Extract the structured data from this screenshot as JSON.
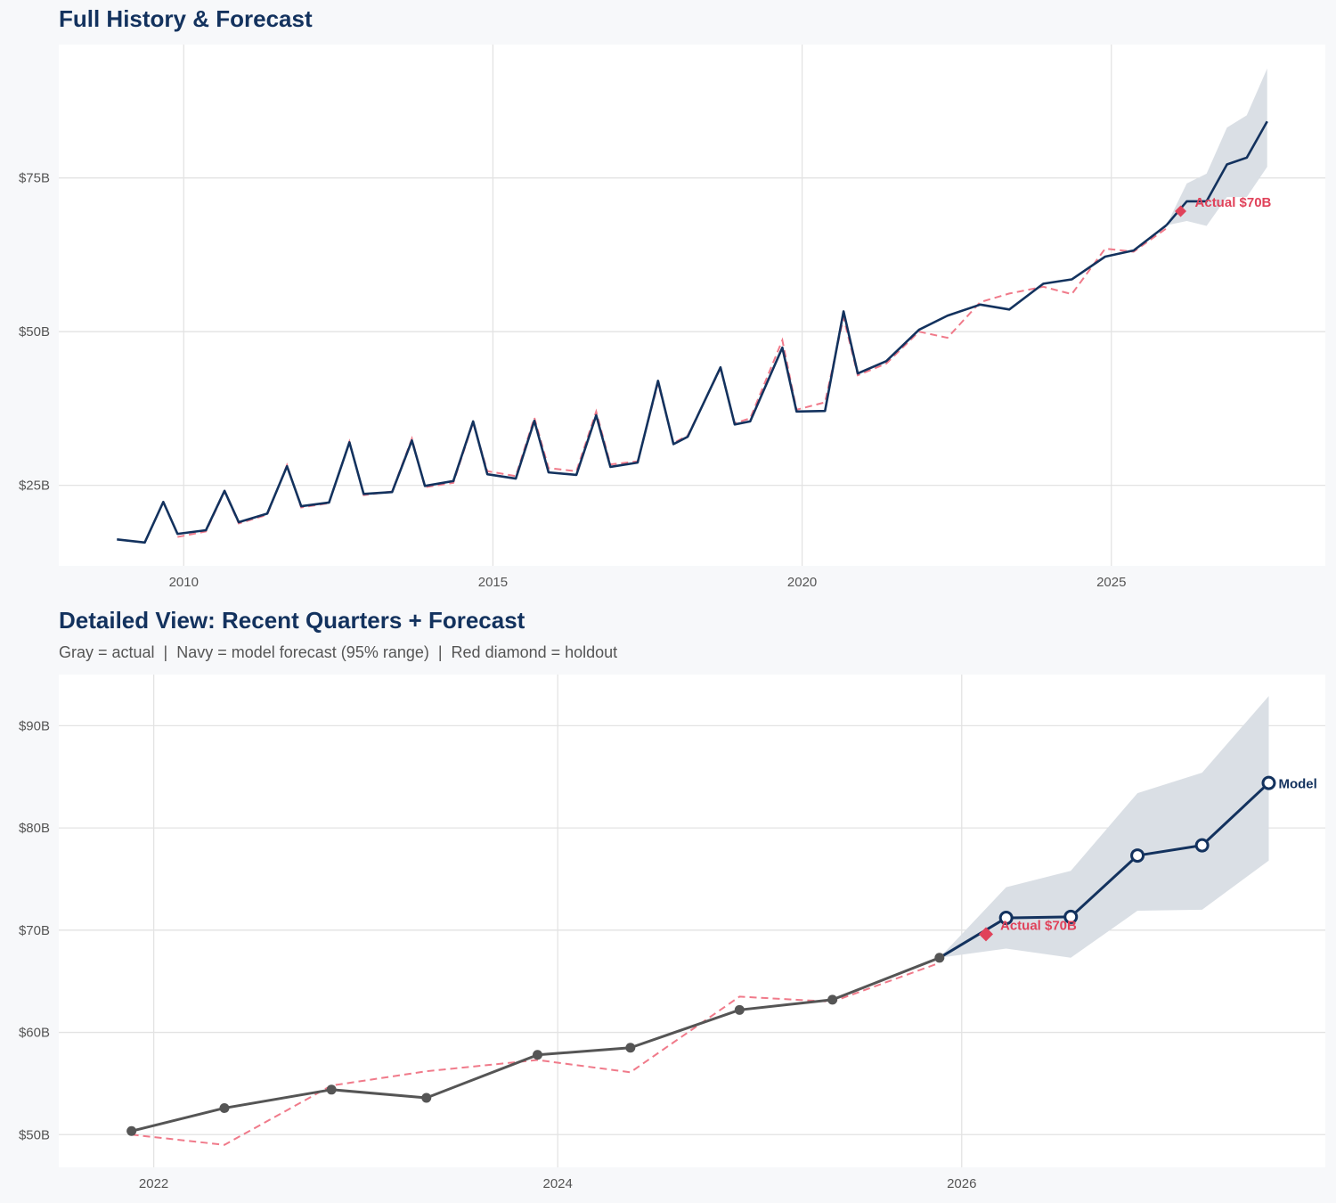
{
  "colors": {
    "navy": "#13325e",
    "gray": "#555555",
    "red": "#e0425a",
    "fit": "#f07a8a",
    "band": "#dadfe5",
    "grid": "#e3e3e3",
    "panel": "#ffffff",
    "background": "#f7f8fa"
  },
  "chart_data": [
    {
      "type": "line",
      "title": "Full History & Forecast",
      "xlim": [
        2007.98,
        2028.46
      ],
      "ylim": [
        11.9,
        96.7
      ],
      "grid": true,
      "x_ticks": [
        2010,
        2015,
        2020,
        2025
      ],
      "x_tick_labels": [
        "2010",
        "2015",
        "2020",
        "2025"
      ],
      "y_ticks": [
        25,
        50,
        75
      ],
      "y_tick_labels": [
        "$25B",
        "$50B",
        "$75B"
      ],
      "actual": {
        "x": [
          2008.92,
          2009.37,
          2009.67,
          2009.9,
          2010.36,
          2010.66,
          2010.89,
          2011.35,
          2011.67,
          2011.9,
          2012.35,
          2012.68,
          2012.91,
          2013.37,
          2013.69,
          2013.9,
          2014.36,
          2014.68,
          2014.91,
          2015.37,
          2015.67,
          2015.9,
          2016.35,
          2016.67,
          2016.9,
          2017.34,
          2017.67,
          2017.92,
          2018.15,
          2018.68,
          2018.91,
          2019.16,
          2019.68,
          2019.91,
          2020.37,
          2020.67,
          2020.9,
          2021.36,
          2021.89,
          2022.35,
          2022.88,
          2023.35,
          2023.9,
          2024.36,
          2024.9,
          2025.36,
          2025.89
        ],
        "y": [
          16.2,
          15.7,
          22.3,
          17.1,
          17.7,
          24.1,
          19.0,
          20.4,
          28.1,
          21.6,
          22.2,
          32.0,
          23.6,
          23.9,
          32.3,
          24.9,
          25.7,
          35.4,
          26.8,
          26.1,
          35.5,
          27.1,
          26.7,
          36.4,
          28.0,
          28.7,
          42.0,
          31.7,
          32.9,
          44.2,
          34.9,
          35.4,
          47.4,
          37.0,
          37.1,
          53.3,
          43.2,
          45.2,
          50.3,
          52.6,
          54.4,
          53.6,
          57.8,
          58.5,
          62.2,
          63.2,
          67.3
        ]
      },
      "fitted": {
        "x": [
          2009.9,
          2010.36,
          2010.66,
          2010.89,
          2011.35,
          2011.67,
          2011.9,
          2012.35,
          2012.68,
          2012.91,
          2013.37,
          2013.69,
          2013.9,
          2014.36,
          2014.68,
          2014.91,
          2015.37,
          2015.67,
          2015.9,
          2016.35,
          2016.67,
          2016.9,
          2017.34,
          2017.67,
          2017.92,
          2018.15,
          2018.68,
          2018.91,
          2019.16,
          2019.68,
          2019.91,
          2020.37,
          2020.67,
          2020.9,
          2021.36,
          2021.89,
          2022.35,
          2022.88,
          2023.35,
          2023.9,
          2024.36,
          2024.9,
          2025.36,
          2025.89
        ],
        "y": [
          16.6,
          17.5,
          24.0,
          18.8,
          20.2,
          28.3,
          21.4,
          22.1,
          32.1,
          23.4,
          24.0,
          32.6,
          24.7,
          25.4,
          35.2,
          27.3,
          26.5,
          36.0,
          27.8,
          27.3,
          37.0,
          28.4,
          28.9,
          41.6,
          31.9,
          33.1,
          44.0,
          35.1,
          35.9,
          48.6,
          37.3,
          38.5,
          52.3,
          42.9,
          44.8,
          50.0,
          49.0,
          54.8,
          56.2,
          57.3,
          56.1,
          63.5,
          63.0,
          66.8
        ]
      },
      "forecast": {
        "x": [
          2025.89,
          2026.22,
          2026.54,
          2026.87,
          2027.19,
          2027.52
        ],
        "y": [
          67.3,
          71.2,
          71.2,
          77.2,
          78.3,
          84.2
        ],
        "lower": [
          67.3,
          68.0,
          67.2,
          71.9,
          71.9,
          76.8
        ],
        "upper": [
          67.3,
          74.1,
          75.7,
          83.2,
          85.2,
          92.8
        ]
      },
      "holdout": {
        "x": 2026.12,
        "y": 69.6,
        "label": "Actual $70B"
      }
    },
    {
      "type": "line",
      "title": "Detailed View: Recent Quarters + Forecast",
      "subtitle": "Gray = actual  |  Navy = model forecast (95% range)  |  Red diamond = holdout",
      "xlim": [
        2021.53,
        2027.8
      ],
      "ylim": [
        46.8,
        95.0
      ],
      "grid": true,
      "x_ticks": [
        2022,
        2024,
        2026
      ],
      "x_tick_labels": [
        "2022",
        "2024",
        "2026"
      ],
      "y_ticks": [
        50,
        60,
        70,
        80,
        90
      ],
      "y_tick_labels": [
        "$50B",
        "$60B",
        "$70B",
        "$80B",
        "$90B"
      ],
      "actual": {
        "x": [
          2021.89,
          2022.35,
          2022.88,
          2023.35,
          2023.9,
          2024.36,
          2024.9,
          2025.36,
          2025.89
        ],
        "y": [
          50.35,
          52.6,
          54.4,
          53.6,
          57.8,
          58.5,
          62.2,
          63.2,
          67.3
        ]
      },
      "fitted": {
        "x": [
          2021.89,
          2022.35,
          2022.88,
          2023.35,
          2023.9,
          2024.36,
          2024.9,
          2025.36,
          2025.89
        ],
        "y": [
          50.0,
          49.0,
          54.8,
          56.2,
          57.3,
          56.1,
          63.5,
          63.0,
          66.8
        ]
      },
      "forecast": {
        "x": [
          2025.89,
          2026.22,
          2026.54,
          2026.87,
          2027.19,
          2027.52
        ],
        "y": [
          67.3,
          71.2,
          71.3,
          77.3,
          78.3,
          84.4
        ],
        "lower": [
          67.3,
          68.2,
          67.3,
          71.9,
          72.0,
          76.8
        ],
        "upper": [
          67.3,
          74.2,
          75.8,
          83.4,
          85.4,
          92.9
        ],
        "label": "Model"
      },
      "holdout": {
        "x": 2026.12,
        "y": 69.6,
        "label": "Actual $70B"
      }
    }
  ]
}
